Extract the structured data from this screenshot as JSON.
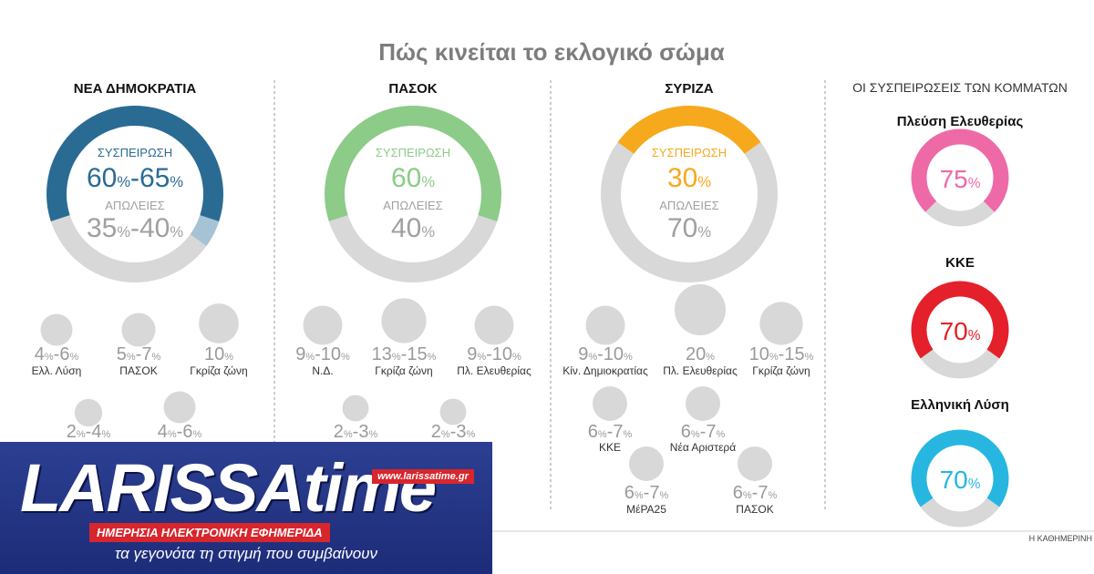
{
  "title": "Πώς κινείται το εκλογικό σώμα",
  "credit": "Η ΚΑΘΗΜΕΡΙΝΗ",
  "right_header": "ΟΙ ΣΥΣΠΕΙΡΩΣΕΙΣ ΤΩΝ ΚΟΜΜΑΤΩΝ",
  "colors": {
    "nd": "#2a6b94",
    "nd_light": "#a6c3d6",
    "pasok": "#8ccb88",
    "syriza": "#f6a91c",
    "grey": "#d8d8d8",
    "plefsi": "#ee6aa7",
    "kke": "#e4202a",
    "elliniki": "#27b6e0",
    "bubble": "#d8d8d8"
  },
  "chart_data": [
    {
      "type": "pie",
      "party": "ΝΕΑ ΔΗΜΟΚΡΑΤΙΑ",
      "retention_label": "ΣΥΣΠΕΙΡΩΣΗ",
      "retention_text": [
        "60",
        "%",
        "-65",
        "%"
      ],
      "retention_range": [
        60,
        65
      ],
      "loss_label": "ΑΠΩΛΕΙΕΣ",
      "loss_text": [
        "35",
        "%",
        "-40",
        "%"
      ],
      "loss_range": [
        35,
        40
      ],
      "flows": [
        {
          "label": "Ελλ. Λύση",
          "text": [
            "4",
            "%",
            "-6",
            "%"
          ],
          "value": 5
        },
        {
          "label": "ΠΑΣΟΚ",
          "text": [
            "5",
            "%",
            "-7",
            "%"
          ],
          "value": 6
        },
        {
          "label": "Γκρίζα ζώνη",
          "text": [
            "10",
            "%"
          ],
          "value": 10
        },
        {
          "label": "",
          "text": [
            "2",
            "%",
            "-4",
            "%"
          ],
          "value": 3
        },
        {
          "label": "",
          "text": [
            "4",
            "%",
            "-6",
            "%"
          ],
          "value": 5
        }
      ]
    },
    {
      "type": "pie",
      "party": "ΠΑΣΟΚ",
      "retention_label": "ΣΥΣΠΕΙΡΩΣΗ",
      "retention_text": [
        "60",
        "%"
      ],
      "retention_range": [
        60,
        60
      ],
      "loss_label": "ΑΠΩΛΕΙΕΣ",
      "loss_text": [
        "40",
        "%"
      ],
      "loss_range": [
        40,
        40
      ],
      "flows": [
        {
          "label": "Ν.Δ.",
          "text": [
            "9",
            "%",
            "-10",
            "%"
          ],
          "value": 9.5
        },
        {
          "label": "Γκρίζα ζώνη",
          "text": [
            "13",
            "%",
            "-15",
            "%"
          ],
          "value": 14
        },
        {
          "label": "Πλ. Ελευθερίας",
          "text": [
            "9",
            "%",
            "-10",
            "%"
          ],
          "value": 9.5
        },
        {
          "label": "",
          "text": [
            "2",
            "%",
            "-3",
            "%"
          ],
          "value": 2.5
        },
        {
          "label": "",
          "text": [
            "2",
            "%",
            "-3",
            "%"
          ],
          "value": 2.5
        }
      ]
    },
    {
      "type": "pie",
      "party": "ΣΥΡΙΖΑ",
      "retention_label": "ΣΥΣΠΕΙΡΩΣΗ",
      "retention_text": [
        "30",
        "%"
      ],
      "retention_range": [
        30,
        30
      ],
      "loss_label": "ΑΠΩΛΕΙΕΣ",
      "loss_text": [
        "70",
        "%"
      ],
      "loss_range": [
        70,
        70
      ],
      "flows": [
        {
          "label": "Κίν. Δημιοκρατίας",
          "text": [
            "9",
            "%",
            "-10",
            "%"
          ],
          "value": 9.5
        },
        {
          "label": "Πλ. Ελευθερίας",
          "text": [
            "20",
            "%"
          ],
          "value": 20
        },
        {
          "label": "Γκρίζα ζώνη",
          "text": [
            "10",
            "%",
            "-15",
            "%"
          ],
          "value": 12.5
        },
        {
          "label": "ΚΚΕ",
          "text": [
            "6",
            "%",
            "-7",
            "%"
          ],
          "value": 6.5
        },
        {
          "label": "Νέα Αριστερά",
          "text": [
            "6",
            "%",
            "-7",
            "%"
          ],
          "value": 6.5
        },
        {
          "label": "ΜέΡΑ25",
          "text": [
            "6",
            "%",
            "-7",
            "%"
          ],
          "value": 6.5
        },
        {
          "label": "ΠΑΣΟΚ",
          "text": [
            "6",
            "%",
            "-7",
            "%"
          ],
          "value": 6.5
        }
      ]
    },
    {
      "type": "pie",
      "party": "Πλεύση Ελευθερίας",
      "retention_text": [
        "75",
        "%"
      ],
      "retention_range": [
        75,
        75
      ]
    },
    {
      "type": "pie",
      "party": "ΚΚΕ",
      "retention_text": [
        "70",
        "%"
      ],
      "retention_range": [
        70,
        70
      ]
    },
    {
      "type": "pie",
      "party": "Ελληνική Λύση",
      "retention_text": [
        "70",
        "%"
      ],
      "retention_range": [
        70,
        70
      ]
    }
  ],
  "logo": {
    "brand_text": "LARISSA",
    "brand_t": "time",
    "url": "www.larissatime.gr",
    "strip": "ΗΜΕΡΗΣΙΑ ΗΛΕΚΤΡΟΝΙΚΗ ΕΦΗΜΕΡΙΔΑ",
    "tagline": "τα γεγονότα τη στιγμή που συμβαίνουν"
  }
}
